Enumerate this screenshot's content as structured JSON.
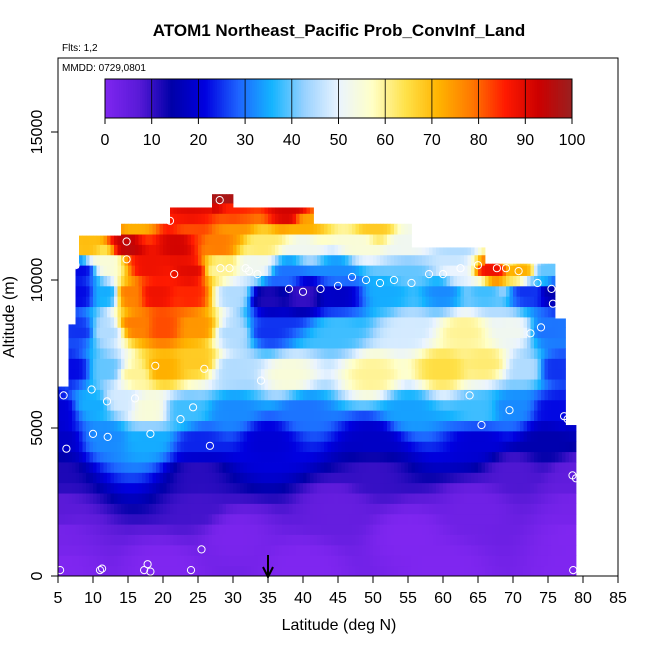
{
  "chart_data": {
    "type": "heatmap",
    "title": "ATOM1 Northeast_Pacific Prob_ConvInf_Land",
    "subtitle_flights": "Flts: 1,2",
    "subtitle_dates": "MMDD: 0729,0801",
    "xlabel": "Latitude (deg N)",
    "ylabel": "Altitude (m)",
    "xlim": [
      5,
      85
    ],
    "ylim": [
      0,
      17500
    ],
    "x_ticks": [
      "5",
      "10",
      "15",
      "20",
      "25",
      "30",
      "35",
      "40",
      "45",
      "50",
      "55",
      "60",
      "65",
      "70",
      "75",
      "80",
      "85"
    ],
    "y_ticks": [
      "0",
      "5000",
      "10000",
      "15000"
    ],
    "colorbar": {
      "ticks": [
        "0",
        "10",
        "20",
        "30",
        "40",
        "50",
        "60",
        "70",
        "80",
        "90",
        "100"
      ],
      "range": [
        0,
        100
      ],
      "stops": [
        "#7f26f0",
        "#5a1ad8",
        "#0000a8",
        "#0000e0",
        "#1e64ff",
        "#14b4ff",
        "#9ad2ff",
        "#eaf4ff",
        "#ffffc8",
        "#ffe24a",
        "#ffb400",
        "#ff7800",
        "#ff1a00",
        "#cc0000",
        "#9a2020"
      ]
    },
    "marker_arrow_latitude": 35,
    "field": {
      "x_min": 5,
      "x_max": 79,
      "x_step": 0.5,
      "z_step": 350,
      "upper_bounds": [
        {
          "x": 5,
          "z": 6400
        },
        {
          "x": 6,
          "z": 6400
        },
        {
          "x": 6.5,
          "z": 8500
        },
        {
          "x": 7.5,
          "z": 8500
        },
        {
          "x": 7.5,
          "z": 10400
        },
        {
          "x": 8,
          "z": 10400
        },
        {
          "x": 8,
          "z": 11500
        },
        {
          "x": 14,
          "z": 11500
        },
        {
          "x": 14,
          "z": 11900
        },
        {
          "x": 21,
          "z": 11900
        },
        {
          "x": 21,
          "z": 12450
        },
        {
          "x": 27,
          "z": 12450
        },
        {
          "x": 27,
          "z": 12900
        },
        {
          "x": 30,
          "z": 12900
        },
        {
          "x": 30,
          "z": 12450
        },
        {
          "x": 41.5,
          "z": 12450
        },
        {
          "x": 41.5,
          "z": 11900
        },
        {
          "x": 55.5,
          "z": 11900
        },
        {
          "x": 55.5,
          "z": 11100
        },
        {
          "x": 66,
          "z": 11100
        },
        {
          "x": 66,
          "z": 10550
        },
        {
          "x": 76,
          "z": 10550
        },
        {
          "x": 76,
          "z": 8700
        },
        {
          "x": 77.5,
          "z": 8700
        },
        {
          "x": 77.5,
          "z": 5100
        },
        {
          "x": 78.5,
          "z": 5100
        },
        {
          "x": 79,
          "z": 3300
        }
      ],
      "control_points": [
        {
          "x": 5,
          "z": 300,
          "v": 0
        },
        {
          "x": 20,
          "z": 300,
          "v": 0
        },
        {
          "x": 40,
          "z": 300,
          "v": 0
        },
        {
          "x": 60,
          "z": 300,
          "v": 0
        },
        {
          "x": 79,
          "z": 300,
          "v": 0
        },
        {
          "x": 5,
          "z": 1400,
          "v": 2
        },
        {
          "x": 30,
          "z": 1400,
          "v": 1
        },
        {
          "x": 55,
          "z": 1400,
          "v": 0
        },
        {
          "x": 79,
          "z": 1400,
          "v": 0
        },
        {
          "x": 5,
          "z": 2300,
          "v": 7
        },
        {
          "x": 25,
          "z": 2300,
          "v": 9
        },
        {
          "x": 45,
          "z": 2300,
          "v": 5
        },
        {
          "x": 65,
          "z": 2300,
          "v": 3
        },
        {
          "x": 79,
          "z": 2300,
          "v": 2
        },
        {
          "x": 5,
          "z": 3500,
          "v": 12
        },
        {
          "x": 25,
          "z": 3500,
          "v": 11
        },
        {
          "x": 50,
          "z": 3500,
          "v": 10
        },
        {
          "x": 70,
          "z": 3500,
          "v": 8
        },
        {
          "x": 79,
          "z": 3400,
          "v": 6
        },
        {
          "x": 5,
          "z": 4600,
          "v": 18
        },
        {
          "x": 12,
          "z": 4700,
          "v": 32
        },
        {
          "x": 18,
          "z": 4600,
          "v": 35
        },
        {
          "x": 25,
          "z": 4500,
          "v": 24
        },
        {
          "x": 35,
          "z": 4600,
          "v": 20
        },
        {
          "x": 50,
          "z": 4600,
          "v": 18
        },
        {
          "x": 65,
          "z": 4600,
          "v": 20
        },
        {
          "x": 75,
          "z": 4600,
          "v": 15
        },
        {
          "x": 5,
          "z": 5600,
          "v": 20
        },
        {
          "x": 10,
          "z": 5800,
          "v": 35
        },
        {
          "x": 14,
          "z": 6000,
          "v": 48
        },
        {
          "x": 18,
          "z": 5600,
          "v": 55
        },
        {
          "x": 23,
          "z": 5600,
          "v": 38
        },
        {
          "x": 30,
          "z": 5600,
          "v": 32
        },
        {
          "x": 40,
          "z": 5600,
          "v": 30
        },
        {
          "x": 55,
          "z": 5600,
          "v": 34
        },
        {
          "x": 65,
          "z": 5600,
          "v": 38
        },
        {
          "x": 70,
          "z": 5700,
          "v": 32
        },
        {
          "x": 76,
          "z": 5600,
          "v": 22
        },
        {
          "x": 7,
          "z": 7000,
          "v": 22
        },
        {
          "x": 12,
          "z": 7000,
          "v": 40
        },
        {
          "x": 16,
          "z": 6800,
          "v": 60
        },
        {
          "x": 20,
          "z": 7000,
          "v": 72
        },
        {
          "x": 25,
          "z": 7300,
          "v": 68
        },
        {
          "x": 30,
          "z": 7000,
          "v": 45
        },
        {
          "x": 38,
          "z": 6800,
          "v": 55
        },
        {
          "x": 50,
          "z": 6800,
          "v": 60
        },
        {
          "x": 60,
          "z": 7000,
          "v": 65
        },
        {
          "x": 66,
          "z": 7200,
          "v": 62
        },
        {
          "x": 72,
          "z": 7000,
          "v": 45
        },
        {
          "x": 76,
          "z": 7000,
          "v": 25
        },
        {
          "x": 8,
          "z": 8300,
          "v": 25
        },
        {
          "x": 12,
          "z": 8300,
          "v": 45
        },
        {
          "x": 16,
          "z": 8500,
          "v": 78
        },
        {
          "x": 20,
          "z": 8400,
          "v": 82
        },
        {
          "x": 25,
          "z": 8400,
          "v": 75
        },
        {
          "x": 30,
          "z": 8200,
          "v": 45
        },
        {
          "x": 35,
          "z": 8300,
          "v": 25
        },
        {
          "x": 45,
          "z": 8300,
          "v": 38
        },
        {
          "x": 55,
          "z": 8300,
          "v": 48
        },
        {
          "x": 63,
          "z": 8300,
          "v": 60
        },
        {
          "x": 70,
          "z": 8300,
          "v": 52
        },
        {
          "x": 75,
          "z": 8300,
          "v": 30
        },
        {
          "x": 8,
          "z": 9500,
          "v": 22
        },
        {
          "x": 12,
          "z": 9500,
          "v": 35
        },
        {
          "x": 15,
          "z": 9500,
          "v": 78
        },
        {
          "x": 19,
          "z": 9500,
          "v": 88
        },
        {
          "x": 24,
          "z": 9500,
          "v": 85
        },
        {
          "x": 30,
          "z": 9500,
          "v": 45
        },
        {
          "x": 35,
          "z": 9400,
          "v": 12
        },
        {
          "x": 40,
          "z": 9500,
          "v": 10
        },
        {
          "x": 45,
          "z": 9500,
          "v": 18
        },
        {
          "x": 52,
          "z": 9600,
          "v": 35
        },
        {
          "x": 60,
          "z": 9600,
          "v": 32
        },
        {
          "x": 66,
          "z": 9600,
          "v": 38
        },
        {
          "x": 72,
          "z": 9600,
          "v": 25
        },
        {
          "x": 76,
          "z": 9600,
          "v": 15
        },
        {
          "x": 8,
          "z": 10300,
          "v": 22
        },
        {
          "x": 12,
          "z": 10600,
          "v": 55
        },
        {
          "x": 18,
          "z": 10500,
          "v": 88
        },
        {
          "x": 24,
          "z": 10300,
          "v": 90
        },
        {
          "x": 28,
          "z": 10400,
          "v": 60
        },
        {
          "x": 33,
          "z": 10500,
          "v": 52
        },
        {
          "x": 38,
          "z": 10300,
          "v": 30
        },
        {
          "x": 45,
          "z": 10300,
          "v": 32
        },
        {
          "x": 55,
          "z": 10300,
          "v": 40
        },
        {
          "x": 62,
          "z": 10300,
          "v": 50
        },
        {
          "x": 67,
          "z": 10300,
          "v": 88
        },
        {
          "x": 71,
          "z": 10300,
          "v": 72
        },
        {
          "x": 75,
          "z": 10300,
          "v": 40
        },
        {
          "x": 9,
          "z": 11200,
          "v": 70
        },
        {
          "x": 15,
          "z": 11200,
          "v": 95
        },
        {
          "x": 22,
          "z": 11200,
          "v": 92
        },
        {
          "x": 28,
          "z": 11200,
          "v": 78
        },
        {
          "x": 34,
          "z": 11200,
          "v": 62
        },
        {
          "x": 40,
          "z": 11200,
          "v": 52
        },
        {
          "x": 48,
          "z": 11200,
          "v": 55
        },
        {
          "x": 55,
          "z": 11200,
          "v": 52
        },
        {
          "x": 62,
          "z": 11000,
          "v": 45
        },
        {
          "x": 70,
          "z": 10800,
          "v": 55
        },
        {
          "x": 16,
          "z": 11800,
          "v": 72
        },
        {
          "x": 24,
          "z": 11800,
          "v": 82
        },
        {
          "x": 30,
          "z": 11800,
          "v": 75
        },
        {
          "x": 40,
          "z": 11800,
          "v": 72
        },
        {
          "x": 50,
          "z": 11800,
          "v": 68
        },
        {
          "x": 24,
          "z": 12300,
          "v": 90
        },
        {
          "x": 30,
          "z": 12300,
          "v": 85
        },
        {
          "x": 38,
          "z": 12300,
          "v": 92
        },
        {
          "x": 28.5,
          "z": 12800,
          "v": 98
        }
      ]
    },
    "observations": [
      {
        "x": 5.3,
        "z": 200
      },
      {
        "x": 11,
        "z": 200
      },
      {
        "x": 11.3,
        "z": 250
      },
      {
        "x": 17.3,
        "z": 200
      },
      {
        "x": 18.2,
        "z": 150
      },
      {
        "x": 17.8,
        "z": 400
      },
      {
        "x": 24,
        "z": 200
      },
      {
        "x": 25.5,
        "z": 900
      },
      {
        "x": 5.8,
        "z": 6100
      },
      {
        "x": 6.2,
        "z": 4300
      },
      {
        "x": 9.8,
        "z": 6300
      },
      {
        "x": 10,
        "z": 4800
      },
      {
        "x": 12,
        "z": 5900
      },
      {
        "x": 12.1,
        "z": 4700
      },
      {
        "x": 16,
        "z": 6000
      },
      {
        "x": 18.2,
        "z": 4800
      },
      {
        "x": 18.9,
        "z": 7100
      },
      {
        "x": 22.5,
        "z": 5300
      },
      {
        "x": 24.3,
        "z": 5700
      },
      {
        "x": 25.9,
        "z": 7000
      },
      {
        "x": 26.7,
        "z": 4400
      },
      {
        "x": 34,
        "z": 6600
      },
      {
        "x": 7.5,
        "z": 10500
      },
      {
        "x": 14.8,
        "z": 11300
      },
      {
        "x": 14.8,
        "z": 10700
      },
      {
        "x": 21,
        "z": 12000
      },
      {
        "x": 21.6,
        "z": 10200
      },
      {
        "x": 28.1,
        "z": 12700
      },
      {
        "x": 31.3,
        "z": 12700
      },
      {
        "x": 28.2,
        "z": 10400
      },
      {
        "x": 29.5,
        "z": 10400
      },
      {
        "x": 31.8,
        "z": 10400
      },
      {
        "x": 32.3,
        "z": 10300
      },
      {
        "x": 33.5,
        "z": 10200
      },
      {
        "x": 38,
        "z": 9700
      },
      {
        "x": 40,
        "z": 9600
      },
      {
        "x": 42.5,
        "z": 9700
      },
      {
        "x": 45,
        "z": 9800
      },
      {
        "x": 47,
        "z": 10100
      },
      {
        "x": 49,
        "z": 10000
      },
      {
        "x": 51,
        "z": 9900
      },
      {
        "x": 53,
        "z": 10000
      },
      {
        "x": 55.5,
        "z": 9900
      },
      {
        "x": 58,
        "z": 10200
      },
      {
        "x": 60,
        "z": 10200
      },
      {
        "x": 62.5,
        "z": 10400
      },
      {
        "x": 65,
        "z": 10500
      },
      {
        "x": 67.7,
        "z": 10400
      },
      {
        "x": 69,
        "z": 10400
      },
      {
        "x": 70.8,
        "z": 10300
      },
      {
        "x": 73.5,
        "z": 9900
      },
      {
        "x": 75.5,
        "z": 9700
      },
      {
        "x": 75.7,
        "z": 9200
      },
      {
        "x": 72.5,
        "z": 8200
      },
      {
        "x": 74,
        "z": 8400
      },
      {
        "x": 63.8,
        "z": 6100
      },
      {
        "x": 65.5,
        "z": 5100
      },
      {
        "x": 69.5,
        "z": 5600
      },
      {
        "x": 77.3,
        "z": 5400
      },
      {
        "x": 77.8,
        "z": 5300
      },
      {
        "x": 78.5,
        "z": 3400
      },
      {
        "x": 79,
        "z": 3300
      },
      {
        "x": 78.6,
        "z": 200
      },
      {
        "x": 68,
        "z": 11000
      },
      {
        "x": 70,
        "z": 11300
      }
    ]
  }
}
